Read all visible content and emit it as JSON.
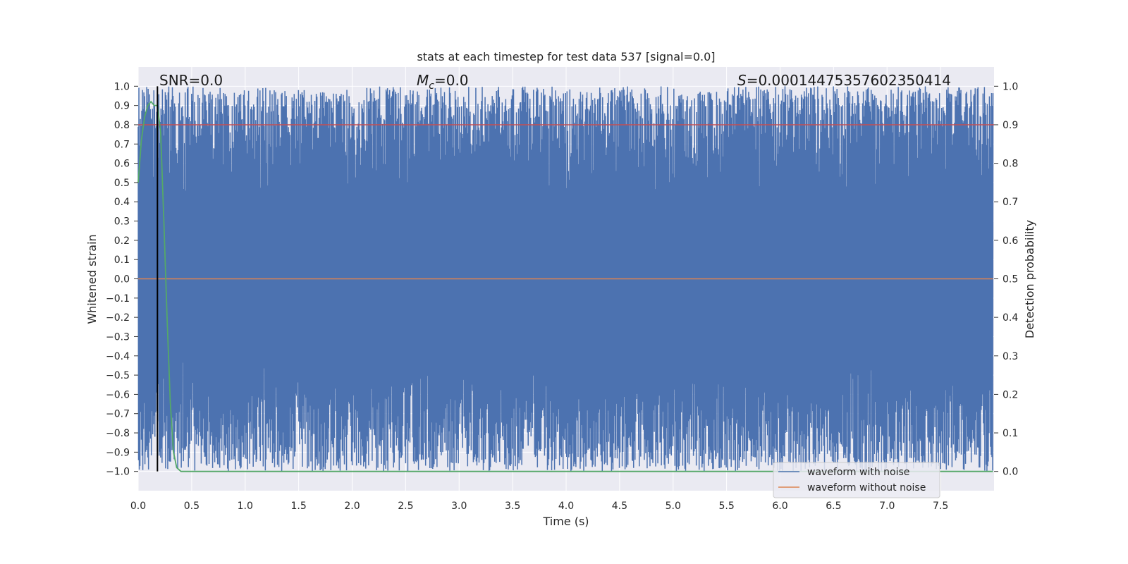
{
  "chart_data": {
    "type": "line",
    "title": "stats at each timestep for test data 537 [signal=0.0]",
    "xlabel": "Time (s)",
    "ylabel": "Whitened strain",
    "y2label": "Detection probability",
    "xlim": [
      0.0,
      8.0
    ],
    "ylim": [
      -1.1,
      1.1
    ],
    "y2lim": [
      -0.05,
      1.05
    ],
    "x_ticks": [
      "0.0",
      "0.5",
      "1.0",
      "1.5",
      "2.0",
      "2.5",
      "3.0",
      "3.5",
      "4.0",
      "4.5",
      "5.0",
      "5.5",
      "6.0",
      "6.5",
      "7.0",
      "7.5"
    ],
    "y_ticks": [
      "1.0",
      "0.9",
      "0.8",
      "0.7",
      "0.6",
      "0.5",
      "0.4",
      "0.3",
      "0.2",
      "0.1",
      "0.0",
      "−0.1",
      "−0.2",
      "−0.3",
      "−0.4",
      "−0.5",
      "−0.6",
      "−0.7",
      "−0.8",
      "−0.9",
      "−1.0"
    ],
    "y2_ticks": [
      "1.0",
      "0.9",
      "0.8",
      "0.7",
      "0.6",
      "0.5",
      "0.4",
      "0.3",
      "0.2",
      "0.1",
      "0.0"
    ],
    "grid": true,
    "legend_position": "bottom-right",
    "annotations": {
      "snr": "SNR=0.0",
      "mc_symbol": "M",
      "mc_subscript": "c",
      "mc_value": "=0.0",
      "s_symbol": "S",
      "s_value": "=0.00014475357602350414"
    },
    "series": [
      {
        "name": "waveform with noise",
        "color": "#4c72b0",
        "description_values": {
          "envelope_min": -1.0,
          "envelope_max": 1.0
        }
      },
      {
        "name": "waveform without noise",
        "color": "#dd8452",
        "x": [
          0.0,
          7.99
        ],
        "y": [
          0.0,
          0.0
        ]
      }
    ],
    "threshold_line": {
      "color": "#c44e52",
      "y2": 0.9
    },
    "event_marker": {
      "color": "#000000",
      "x": 0.18
    },
    "detection_probability": {
      "color": "#55a868",
      "x": [
        0.0,
        0.03,
        0.06,
        0.09,
        0.12,
        0.15,
        0.18,
        0.21,
        0.24,
        0.27,
        0.3,
        0.33,
        0.36,
        0.4,
        7.99
      ],
      "y": [
        0.75,
        0.86,
        0.92,
        0.95,
        0.96,
        0.95,
        0.95,
        0.88,
        0.65,
        0.4,
        0.18,
        0.05,
        0.01,
        0.0,
        0.0
      ]
    }
  }
}
